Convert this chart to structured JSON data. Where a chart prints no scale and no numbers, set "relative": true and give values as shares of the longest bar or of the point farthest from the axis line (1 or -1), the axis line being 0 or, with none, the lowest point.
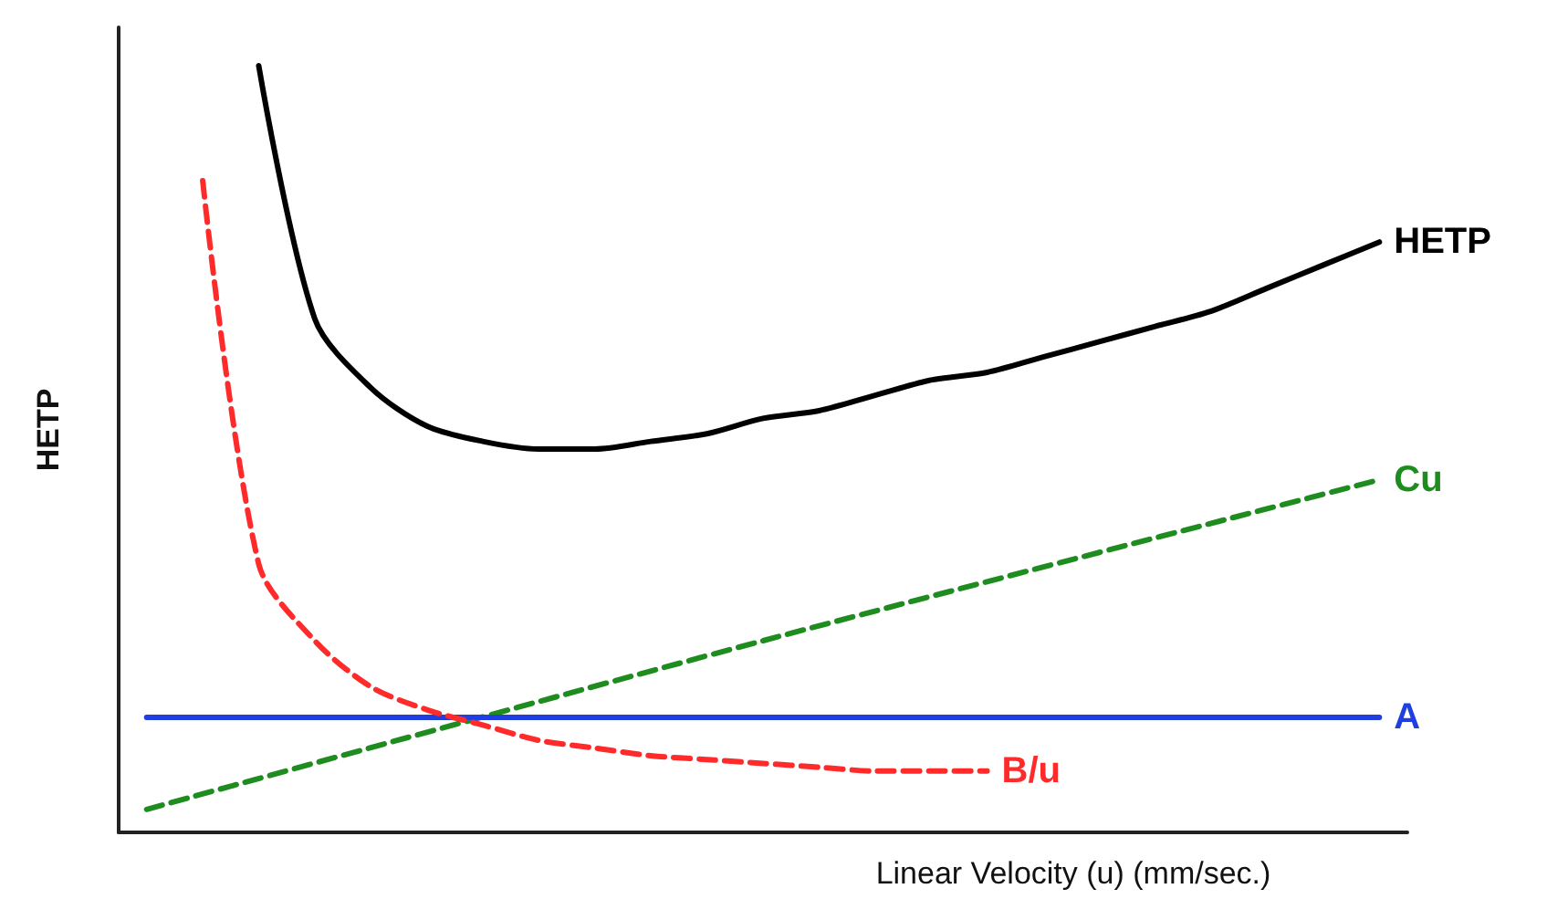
{
  "chart_data": {
    "type": "line",
    "relative": true,
    "xlabel": "Linear Velocity (u) (mm/sec.)",
    "ylabel": "HETP",
    "grid": false,
    "legend": false,
    "categories": [
      null,
      null,
      null,
      null,
      null,
      null,
      null,
      null,
      null,
      null,
      null,
      null,
      null,
      null,
      null,
      null,
      null,
      null,
      null,
      null,
      null,
      null,
      null
    ],
    "series": [
      {
        "name": "HETP",
        "color": "#000000",
        "line_style": "solid",
        "values": [
          null,
          null,
          1.0,
          0.67,
          0.58,
          0.53,
          0.51,
          0.5,
          0.5,
          0.51,
          0.52,
          0.54,
          0.55,
          0.57,
          0.59,
          0.6,
          0.62,
          0.64,
          0.66,
          0.68,
          0.71,
          0.74,
          0.77
        ]
      },
      {
        "name": "Cu",
        "color": "#1e8c1e",
        "line_style": "dashed",
        "values": [
          0.03,
          null,
          null,
          null,
          null,
          null,
          null,
          null,
          null,
          null,
          null,
          0.25,
          null,
          null,
          null,
          null,
          null,
          null,
          null,
          null,
          null,
          null,
          0.46
        ]
      },
      {
        "name": "A",
        "color": "#1f3fe0",
        "line_style": "solid",
        "values": [
          0.15,
          null,
          null,
          null,
          null,
          null,
          null,
          null,
          null,
          null,
          null,
          null,
          null,
          null,
          null,
          null,
          null,
          null,
          null,
          null,
          null,
          null,
          0.15
        ]
      },
      {
        "name": "B/u",
        "color": "#ff2a2a",
        "line_style": "dashed",
        "values": [
          null,
          0.85,
          0.35,
          0.25,
          0.19,
          0.16,
          0.14,
          0.12,
          0.11,
          0.1,
          0.095,
          0.09,
          0.085,
          0.08,
          0.08,
          0.08,
          null,
          null,
          null,
          null,
          null,
          null,
          null
        ]
      }
    ]
  }
}
